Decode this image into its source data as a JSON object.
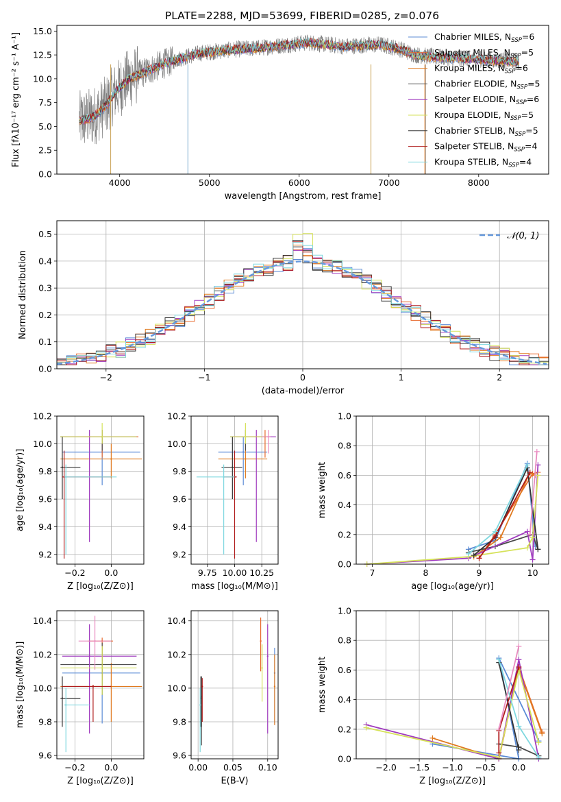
{
  "figure_title": "PLATE=2288, MJD=53699, FIBERID=0285, z=0.076",
  "colors": {
    "chabrier_miles": "#5b8bd6",
    "salpeter_miles": "#e8682c",
    "kroupa_miles": "#e07a1f",
    "chabrier_elodie": "#4a4a4a",
    "salpeter_elodie": "#a03bbf",
    "kroupa_elodie": "#d6e25a",
    "chabrier_stelib": "#333333",
    "salpeter_stelib": "#b01c1c",
    "kroupa_stelib": "#7fd8df",
    "extra_pink": "#e98bc0",
    "extra_green": "#8cc63f",
    "normal_curve": "#6699dd"
  },
  "legend_entries": [
    {
      "key": "chabrier_miles",
      "text": "Chabrier MILES, N",
      "sub": "SSP",
      "tail": "=6"
    },
    {
      "key": "salpeter_miles",
      "text": "Salpeter MILES, N",
      "sub": "SSP",
      "tail": "=5"
    },
    {
      "key": "kroupa_miles",
      "text": "Kroupa MILES, N",
      "sub": "SSP",
      "tail": "=6"
    },
    {
      "key": "chabrier_elodie",
      "text": "Chabrier ELODIE, N",
      "sub": "SSP",
      "tail": "=5"
    },
    {
      "key": "salpeter_elodie",
      "text": "Salpeter ELODIE, N",
      "sub": "SSP",
      "tail": "=6"
    },
    {
      "key": "kroupa_elodie",
      "text": "Kroupa ELODIE, N",
      "sub": "SSP",
      "tail": "=5"
    },
    {
      "key": "chabrier_stelib",
      "text": "Chabrier STELIB, N",
      "sub": "SSP",
      "tail": "=5"
    },
    {
      "key": "salpeter_stelib",
      "text": "Salpeter STELIB, N",
      "sub": "SSP",
      "tail": "=4"
    },
    {
      "key": "kroupa_stelib",
      "text": "Kroupa STELIB, N",
      "sub": "SSP",
      "tail": "=4"
    }
  ],
  "chart_data": [
    {
      "id": "spectrum",
      "type": "line",
      "xlabel": "wavelength [Angstrom, rest frame]",
      "ylabel": "Flux [fλ10⁻¹⁷ erg cm⁻² s⁻¹ A⁻¹]",
      "xlim": [
        3300,
        8780
      ],
      "ylim": [
        0,
        15.6
      ],
      "xticks": [
        4000,
        5000,
        6000,
        7000,
        8000
      ],
      "yticks": [
        0.0,
        2.5,
        5.0,
        7.5,
        10.0,
        12.5,
        15.0
      ],
      "envelope": {
        "x": [
          3550,
          3700,
          3850,
          3950,
          4100,
          4300,
          4500,
          4700,
          4900,
          5100,
          5300,
          5500,
          5700,
          5900,
          6100,
          6300,
          6500,
          6700,
          6900,
          7100,
          7300,
          7500,
          7700,
          7900,
          8100,
          8300,
          8450
        ],
        "y": [
          5.6,
          6.0,
          7.2,
          8.6,
          10.0,
          10.8,
          11.6,
          12.2,
          12.7,
          12.9,
          13.1,
          13.2,
          13.4,
          13.6,
          13.8,
          13.6,
          13.4,
          13.5,
          13.6,
          13.2,
          12.5,
          12.3,
          12.2,
          12.1,
          12.0,
          11.9,
          11.8
        ]
      },
      "series": [
        "chabrier_miles",
        "salpeter_miles",
        "kroupa_miles",
        "chabrier_elodie",
        "salpeter_elodie",
        "kroupa_elodie",
        "chabrier_stelib",
        "salpeter_stelib",
        "kroupa_stelib"
      ]
    },
    {
      "id": "residuals",
      "type": "histogram",
      "xlabel": "(data-model)/error",
      "ylabel": "Normed distribution",
      "xlim": [
        -2.5,
        2.5
      ],
      "ylim": [
        0,
        0.55
      ],
      "xticks": [
        -2,
        -1,
        0,
        1,
        2
      ],
      "yticks": [
        0.0,
        0.1,
        0.2,
        0.3,
        0.4,
        0.5
      ],
      "legend": "𝒩(0, 1)",
      "bin_width": 0.1,
      "series": [
        "chabrier_miles",
        "salpeter_miles",
        "kroupa_miles",
        "chabrier_elodie",
        "salpeter_elodie",
        "kroupa_elodie",
        "chabrier_stelib",
        "salpeter_stelib",
        "kroupa_stelib"
      ]
    },
    {
      "id": "age_vs_Z",
      "type": "errorbar",
      "xlabel": "Z [log₁₀(Z/Z⊙)]",
      "ylabel": "age  [log₁₀(age/yr)]",
      "xlim": [
        -0.3,
        0.18
      ],
      "ylim": [
        9.13,
        10.2
      ],
      "xticks": [
        -0.2,
        0.0
      ],
      "yticks": [
        9.2,
        9.4,
        9.6,
        9.8,
        10.0,
        10.2
      ],
      "points": [
        {
          "c": "chabrier_miles",
          "x": -0.05,
          "y": 9.94,
          "xe": [
            -0.27,
            0.16
          ],
          "ye": [
            9.7,
            10.05
          ]
        },
        {
          "c": "salpeter_miles",
          "x": -0.05,
          "y": 10.05,
          "xe": [
            -0.28,
            0.15
          ],
          "ye": [
            9.9,
            10.1
          ]
        },
        {
          "c": "kroupa_miles",
          "x": 0.0,
          "y": 9.89,
          "xe": [
            -0.28,
            0.17
          ],
          "ye": [
            9.75,
            10.0
          ]
        },
        {
          "c": "chabrier_elodie",
          "x": -0.05,
          "y": 10.05,
          "xe": [
            -0.28,
            0.14
          ],
          "ye": [
            9.95,
            10.1
          ]
        },
        {
          "c": "salpeter_elodie",
          "x": -0.12,
          "y": 10.05,
          "xe": [
            -0.27,
            0.14
          ],
          "ye": [
            9.29,
            10.1
          ]
        },
        {
          "c": "kroupa_elodie",
          "x": -0.05,
          "y": 10.05,
          "xe": [
            -0.28,
            0.14
          ],
          "ye": [
            10.0,
            10.15
          ]
        },
        {
          "c": "chabrier_stelib",
          "x": -0.27,
          "y": 9.83,
          "xe": [
            -0.28,
            -0.17
          ],
          "ye": [
            9.6,
            10.05
          ]
        },
        {
          "c": "salpeter_stelib",
          "x": -0.26,
          "y": 9.76,
          "xe": [
            -0.27,
            0.0
          ],
          "ye": [
            9.17,
            9.95
          ]
        },
        {
          "c": "kroupa_stelib",
          "x": -0.25,
          "y": 9.76,
          "xe": [
            -0.26,
            0.03
          ],
          "ye": [
            9.2,
            9.85
          ]
        }
      ]
    },
    {
      "id": "age_vs_mass",
      "type": "errorbar",
      "xlabel": "mass [log₁₀(M/M⊙)]",
      "ylabel": "",
      "xlim": [
        9.6,
        10.4
      ],
      "ylim": [
        9.13,
        10.2
      ],
      "xticks": [
        9.75,
        10.0,
        10.25
      ],
      "yticks": [
        9.2,
        9.4,
        9.6,
        9.8,
        10.0,
        10.2
      ],
      "points": [
        {
          "c": "chabrier_miles",
          "x": 10.08,
          "y": 9.94,
          "xe": [
            9.85,
            10.3
          ],
          "ye": [
            9.7,
            10.05
          ]
        },
        {
          "c": "salpeter_miles",
          "x": 10.28,
          "y": 10.05,
          "xe": [
            10.05,
            10.3
          ],
          "ye": [
            9.9,
            10.1
          ]
        },
        {
          "c": "kroupa_miles",
          "x": 10.1,
          "y": 9.89,
          "xe": [
            9.85,
            10.3
          ],
          "ye": [
            9.75,
            10.0
          ]
        },
        {
          "c": "chabrier_elodie",
          "x": 10.1,
          "y": 10.05,
          "xe": [
            9.96,
            10.3
          ],
          "ye": [
            9.95,
            10.1
          ]
        },
        {
          "c": "salpeter_elodie",
          "x": 10.2,
          "y": 10.05,
          "xe": [
            9.97,
            10.38
          ],
          "ye": [
            9.29,
            10.1
          ]
        },
        {
          "c": "kroupa_elodie",
          "x": 10.1,
          "y": 10.05,
          "xe": [
            9.96,
            10.3
          ],
          "ye": [
            10.0,
            10.15
          ]
        },
        {
          "c": "chabrier_stelib",
          "x": 9.98,
          "y": 9.83,
          "xe": [
            9.88,
            10.07
          ],
          "ye": [
            9.6,
            10.05
          ]
        },
        {
          "c": "salpeter_stelib",
          "x": 10.0,
          "y": 9.76,
          "xe": [
            9.9,
            10.02
          ],
          "ye": [
            9.17,
            9.95
          ]
        },
        {
          "c": "kroupa_stelib",
          "x": 9.9,
          "y": 9.76,
          "xe": [
            9.65,
            10.0
          ],
          "ye": [
            9.2,
            9.85
          ]
        },
        {
          "c": "extra_pink",
          "x": 10.31,
          "y": 10.05,
          "xe": [
            10.25,
            10.33
          ],
          "ye": [
            9.93,
            10.1
          ]
        }
      ]
    },
    {
      "id": "weight_vs_age",
      "type": "line",
      "xlabel": "age  [log₁₀(age/yr)]",
      "ylabel": "mass weight",
      "xlim": [
        6.7,
        10.3
      ],
      "ylim": [
        0,
        1.0
      ],
      "xticks": [
        7,
        8,
        9,
        10
      ],
      "yticks": [
        0.0,
        0.2,
        0.4,
        0.6,
        0.8,
        1.0
      ],
      "series": [
        {
          "c": "chabrier_miles",
          "x": [
            8.8,
            9.3,
            9.9,
            10.05
          ],
          "y": [
            0.1,
            0.16,
            0.68,
            0.12
          ]
        },
        {
          "c": "salpeter_miles",
          "x": [
            9.0,
            9.3,
            10.0,
            10.1
          ],
          "y": [
            0.04,
            0.2,
            0.61,
            0.62
          ]
        },
        {
          "c": "kroupa_miles",
          "x": [
            8.9,
            9.4,
            9.95,
            10.05
          ],
          "y": [
            0.05,
            0.18,
            0.62,
            0.6
          ]
        },
        {
          "c": "chabrier_elodie",
          "x": [
            8.8,
            9.3,
            10.0,
            10.1
          ],
          "y": [
            0.08,
            0.12,
            0.2,
            0.1
          ]
        },
        {
          "c": "salpeter_elodie",
          "x": [
            6.9,
            8.8,
            9.9,
            10.0,
            10.1
          ],
          "y": [
            0.0,
            0.04,
            0.22,
            0.03,
            0.67
          ]
        },
        {
          "c": "kroupa_elodie",
          "x": [
            6.9,
            8.8,
            9.9,
            10.0,
            10.1
          ],
          "y": [
            0.0,
            0.05,
            0.11,
            0.18,
            0.6
          ]
        },
        {
          "c": "chabrier_stelib",
          "x": [
            8.9,
            9.3,
            9.9,
            10.1
          ],
          "y": [
            0.06,
            0.18,
            0.65,
            0.1
          ]
        },
        {
          "c": "salpeter_stelib",
          "x": [
            9.0,
            9.3,
            9.95
          ],
          "y": [
            0.04,
            0.19,
            0.62
          ]
        },
        {
          "c": "kroupa_stelib",
          "x": [
            8.8,
            9.3,
            9.9
          ],
          "y": [
            0.07,
            0.22,
            0.67
          ]
        },
        {
          "c": "extra_pink",
          "x": [
            9.95,
            10.08
          ],
          "y": [
            0.2,
            0.76
          ]
        }
      ]
    },
    {
      "id": "mass_vs_Z",
      "type": "errorbar",
      "xlabel": "Z [log₁₀(Z/Z⊙)]",
      "ylabel": "mass [log₁₀(M/M⊙)]",
      "xlim": [
        -0.3,
        0.18
      ],
      "ylim": [
        9.58,
        10.46
      ],
      "xticks": [
        -0.2,
        0.0
      ],
      "yticks": [
        9.6,
        9.8,
        10.0,
        10.2,
        10.4
      ],
      "points": [
        {
          "c": "chabrier_miles",
          "x": -0.05,
          "y": 10.09,
          "xe": [
            -0.27,
            0.16
          ],
          "ye": [
            9.79,
            10.2
          ]
        },
        {
          "c": "salpeter_miles",
          "x": -0.05,
          "y": 10.28,
          "xe": [
            -0.13,
            0.01
          ],
          "ye": [
            10.05,
            10.3
          ]
        },
        {
          "c": "kroupa_miles",
          "x": 0.0,
          "y": 10.01,
          "xe": [
            -0.28,
            0.17
          ],
          "ye": [
            9.8,
            10.15
          ]
        },
        {
          "c": "chabrier_elodie",
          "x": -0.05,
          "y": 10.14,
          "xe": [
            -0.28,
            0.14
          ],
          "ye": [
            9.96,
            10.27
          ]
        },
        {
          "c": "salpeter_elodie",
          "x": -0.12,
          "y": 10.19,
          "xe": [
            -0.27,
            0.14
          ],
          "ye": [
            9.73,
            10.38
          ]
        },
        {
          "c": "kroupa_elodie",
          "x": -0.05,
          "y": 10.12,
          "xe": [
            -0.28,
            0.14
          ],
          "ye": [
            9.96,
            10.25
          ]
        },
        {
          "c": "chabrier_stelib",
          "x": -0.27,
          "y": 9.94,
          "xe": [
            -0.28,
            -0.17
          ],
          "ye": [
            9.77,
            10.07
          ]
        },
        {
          "c": "salpeter_stelib",
          "x": -0.1,
          "y": 10.01,
          "xe": [
            -0.27,
            0.0
          ],
          "ye": [
            9.8,
            10.02
          ]
        },
        {
          "c": "kroupa_stelib",
          "x": -0.25,
          "y": 9.9,
          "xe": [
            -0.26,
            -0.12
          ],
          "ye": [
            9.62,
            10.0
          ]
        },
        {
          "c": "extra_pink",
          "x": -0.09,
          "y": 10.28,
          "xe": [
            -0.18,
            0.0
          ],
          "ye": [
            10.11,
            10.43
          ]
        }
      ]
    },
    {
      "id": "mass_vs_EBV",
      "type": "errorbar",
      "xlabel": "E(B-V)",
      "ylabel": "",
      "xlim": [
        -0.01,
        0.115
      ],
      "ylim": [
        9.58,
        10.46
      ],
      "xticks": [
        0.0,
        0.05,
        0.1
      ],
      "yticks": [
        9.6,
        9.8,
        10.0,
        10.2,
        10.4
      ],
      "points": [
        {
          "c": "chabrier_miles",
          "x": 0.11,
          "y": 10.09,
          "ye": [
            9.79,
            10.24
          ]
        },
        {
          "c": "salpeter_miles",
          "x": 0.09,
          "y": 10.28,
          "ye": [
            10.1,
            10.42
          ]
        },
        {
          "c": "kroupa_miles",
          "x": 0.11,
          "y": 10.01,
          "ye": [
            9.78,
            10.2
          ]
        },
        {
          "c": "chabrier_elodie",
          "x": 0.005,
          "y": 9.95,
          "ye": [
            9.66,
            10.07
          ]
        },
        {
          "c": "salpeter_elodie",
          "x": 0.1,
          "y": 10.19,
          "ye": [
            9.73,
            10.38
          ]
        },
        {
          "c": "kroupa_elodie",
          "x": 0.092,
          "y": 10.12,
          "ye": [
            9.92,
            10.26
          ]
        },
        {
          "c": "chabrier_stelib",
          "x": 0.004,
          "y": 9.94,
          "ye": [
            9.77,
            10.07
          ]
        },
        {
          "c": "salpeter_stelib",
          "x": 0.006,
          "y": 10.01,
          "ye": [
            9.8,
            10.06
          ]
        },
        {
          "c": "kroupa_stelib",
          "x": 0.003,
          "y": 9.9,
          "ye": [
            9.62,
            10.0
          ]
        }
      ]
    },
    {
      "id": "weight_vs_Z",
      "type": "line",
      "xlabel": "Z [log₁₀(Z/Z⊙)]",
      "ylabel": "mass weight",
      "xlim": [
        -2.45,
        0.45
      ],
      "ylim": [
        0,
        1.0
      ],
      "xticks": [
        -2.0,
        -1.5,
        -1.0,
        -0.5,
        0.0
      ],
      "yticks": [
        0.0,
        0.2,
        0.4,
        0.6,
        0.8,
        1.0
      ],
      "series": [
        {
          "c": "chabrier_miles",
          "x": [
            -1.3,
            0.0,
            -0.3,
            0.3
          ],
          "y": [
            0.1,
            0.0,
            0.68,
            0.12
          ]
        },
        {
          "c": "salpeter_miles",
          "x": [
            -0.3,
            0.0,
            0.35
          ],
          "y": [
            0.0,
            0.62,
            0.18
          ]
        },
        {
          "c": "kroupa_miles",
          "x": [
            -1.3,
            -0.3,
            0.0,
            0.35
          ],
          "y": [
            0.14,
            0.0,
            0.61,
            0.17
          ]
        },
        {
          "c": "chabrier_elodie",
          "x": [
            -0.3,
            0.0,
            0.3
          ],
          "y": [
            0.1,
            0.08,
            0.02
          ]
        },
        {
          "c": "salpeter_elodie",
          "x": [
            -2.3,
            -0.3,
            0.0,
            0.3
          ],
          "y": [
            0.23,
            0.0,
            0.67,
            0.0
          ]
        },
        {
          "c": "kroupa_elodie",
          "x": [
            -2.3,
            -0.3,
            0.0,
            0.3
          ],
          "y": [
            0.21,
            0.01,
            0.6,
            0.11
          ]
        },
        {
          "c": "chabrier_stelib",
          "x": [
            -0.3,
            0.0
          ],
          "y": [
            0.65,
            0.06
          ]
        },
        {
          "c": "salpeter_stelib",
          "x": [
            -0.3,
            -0.3,
            0.0
          ],
          "y": [
            0.04,
            0.19,
            0.62
          ]
        },
        {
          "c": "kroupa_stelib",
          "x": [
            -0.3,
            0.0,
            0.3
          ],
          "y": [
            0.67,
            0.22,
            0.01
          ]
        },
        {
          "c": "extra_pink",
          "x": [
            -0.3,
            0.0
          ],
          "y": [
            0.2,
            0.76
          ]
        }
      ]
    }
  ]
}
